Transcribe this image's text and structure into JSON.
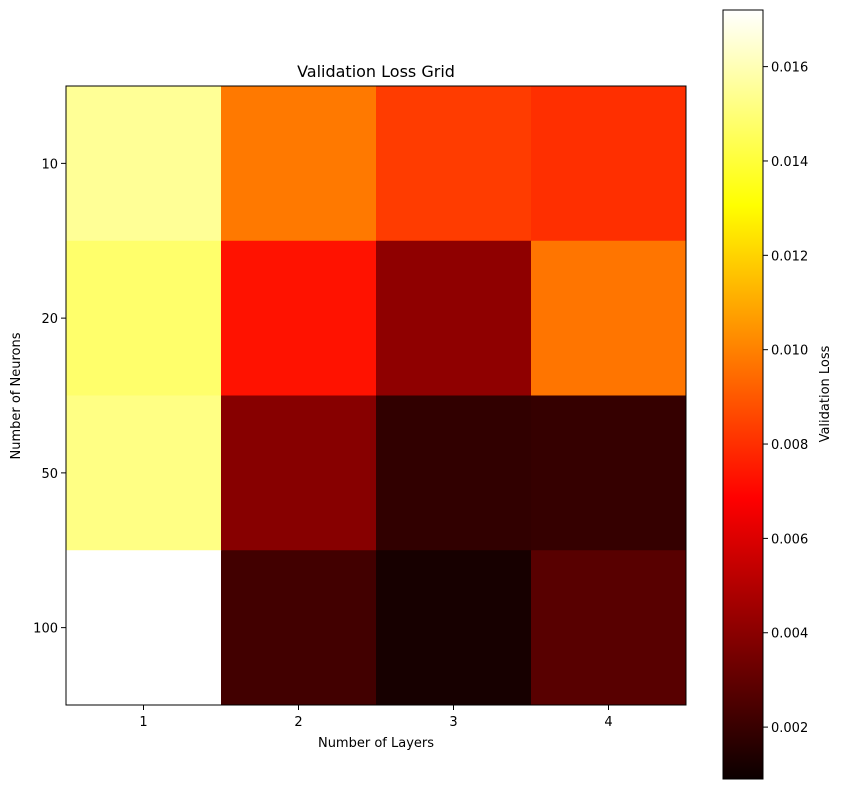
{
  "chart_data": {
    "type": "heatmap",
    "title": "Validation Loss Grid",
    "xlabel": "Number of Layers",
    "ylabel": "Number of Neurons",
    "x_categories": [
      "1",
      "2",
      "3",
      "4"
    ],
    "y_categories": [
      "10",
      "20",
      "50",
      "100"
    ],
    "values": [
      [
        0.0155,
        0.0098,
        0.0083,
        0.008
      ],
      [
        0.0148,
        0.0073,
        0.004,
        0.0097
      ],
      [
        0.0152,
        0.0038,
        0.0018,
        0.0019
      ],
      [
        0.0172,
        0.0022,
        0.0012,
        0.0027
      ]
    ],
    "colormap": "hot",
    "colorbar": {
      "label": "Validation Loss",
      "vmin": 0.0009,
      "vmax": 0.0172,
      "ticks": [
        "0.002",
        "0.004",
        "0.006",
        "0.008",
        "0.010",
        "0.012",
        "0.014",
        "0.016"
      ]
    },
    "grid": false
  }
}
